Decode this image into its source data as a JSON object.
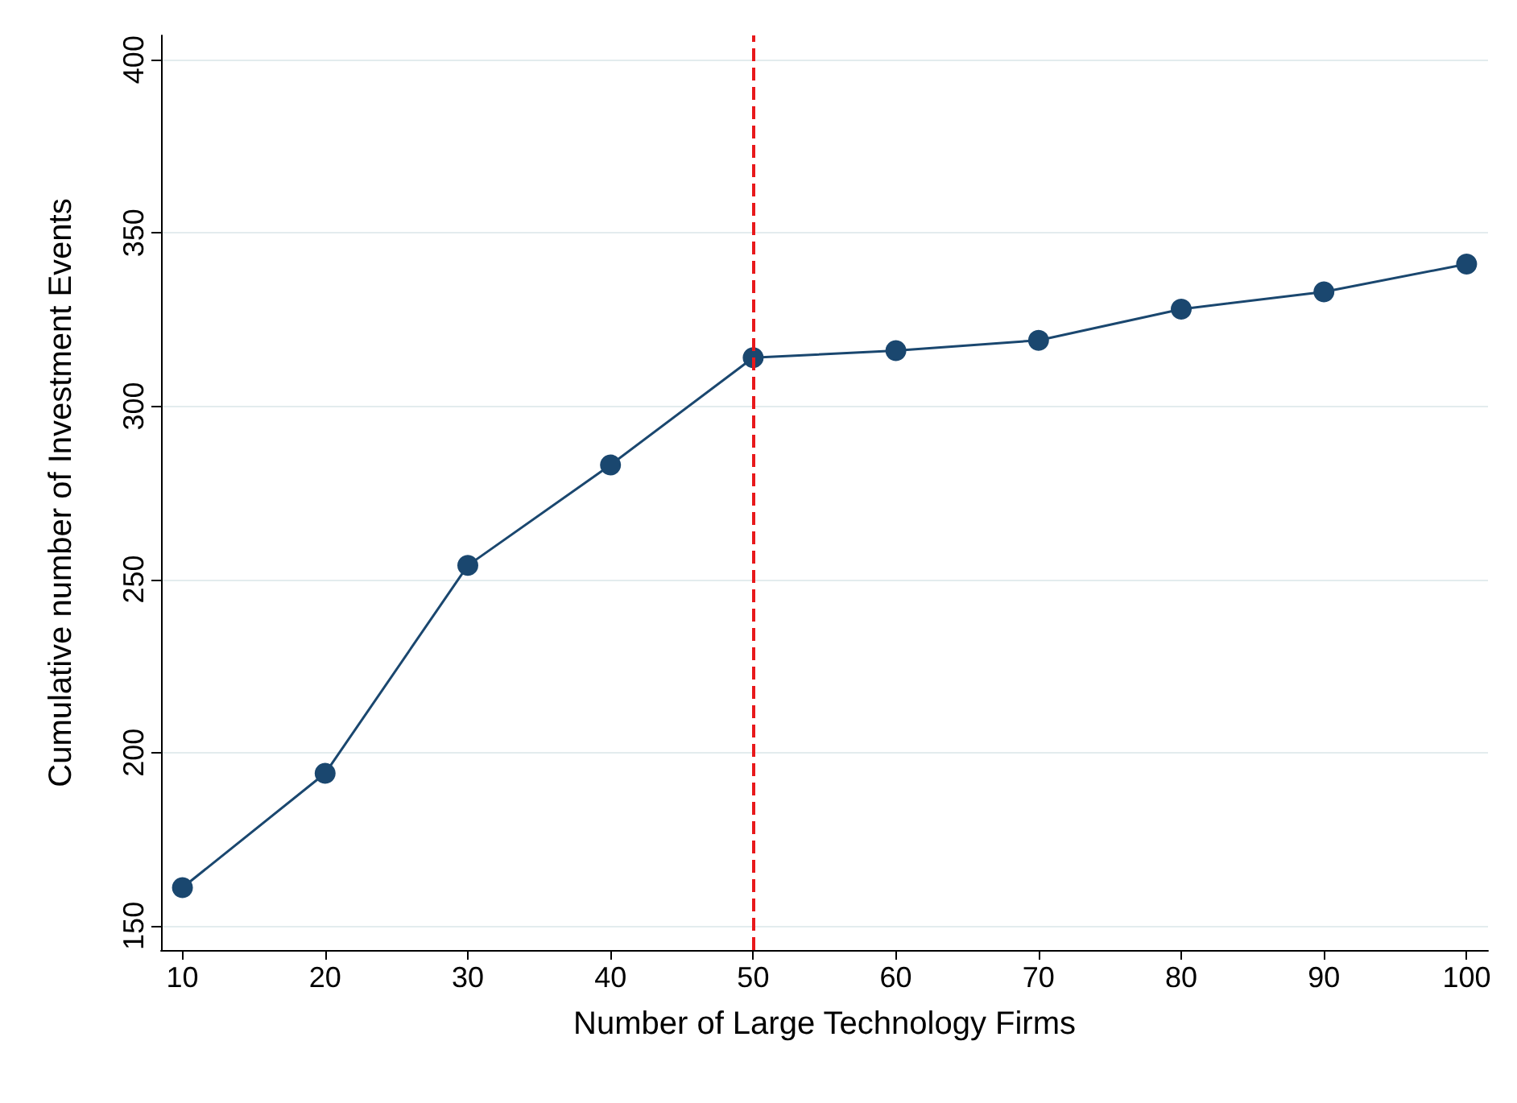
{
  "chart_data": {
    "type": "line",
    "xlabel": "Number of Large Technology Firms",
    "ylabel": "Cumulative number of Investment Events",
    "x": [
      10,
      20,
      30,
      40,
      50,
      60,
      70,
      80,
      90,
      100
    ],
    "series": [
      {
        "color": "#1a476f",
        "values": [
          161,
          194,
          254,
          283,
          314,
          316,
          319,
          328,
          333,
          341
        ]
      }
    ],
    "xlim": [
      8.5,
      101.5
    ],
    "xticks": [
      10,
      20,
      30,
      40,
      50,
      60,
      70,
      80,
      90,
      100
    ],
    "ylim": [
      143,
      407
    ],
    "yticks": [
      150,
      200,
      250,
      300,
      350,
      400
    ],
    "grid": "y",
    "marker": "circle",
    "line_style": "solid",
    "ref_lines": [
      {
        "axis": "x",
        "value": 50,
        "color": "#e8191c",
        "line_style": "dashed"
      }
    ]
  }
}
